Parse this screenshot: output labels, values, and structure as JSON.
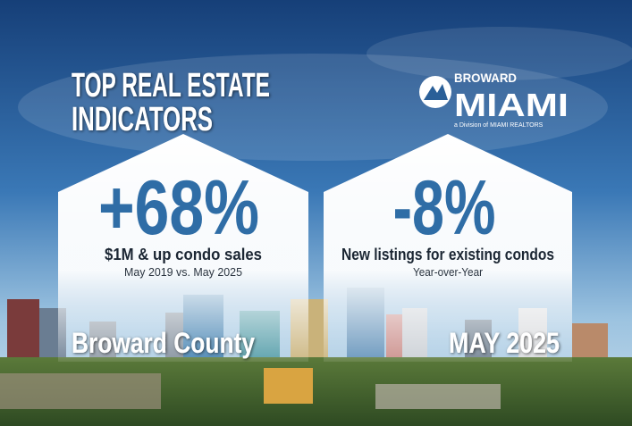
{
  "header": {
    "title_lines": [
      "TOP REAL ESTATE",
      "INDICATORS"
    ]
  },
  "logo": {
    "top": "BROWARD",
    "main": "MIAMI",
    "tagline": "a Division of MIAMI REALTORS"
  },
  "indicators": [
    {
      "figure": "+68%",
      "label": "$1M & up condo sales",
      "note": "May 2019 vs. May 2025",
      "caption": "Broward County"
    },
    {
      "figure": "-8%",
      "label": "New listings for existing condos",
      "note": "Year-over-Year",
      "caption": "MAY 2025"
    }
  ]
}
